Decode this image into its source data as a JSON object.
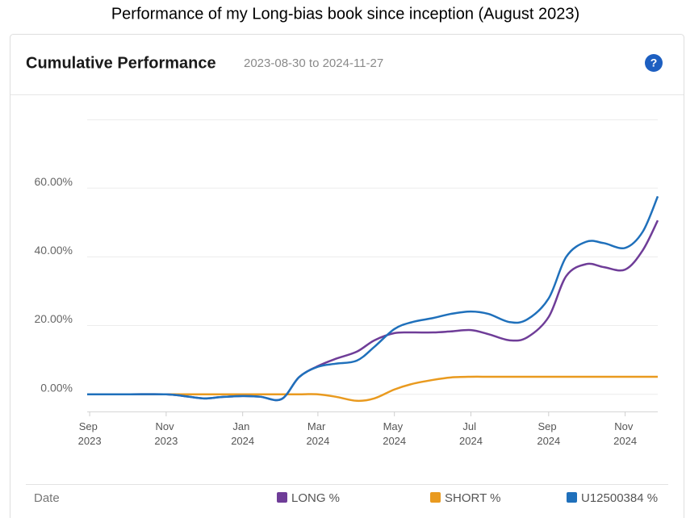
{
  "page_title": "Performance of my Long-bias book since inception (August 2023)",
  "chart_data": {
    "type": "line",
    "title": "Cumulative Performance",
    "subtitle": "2023-08-30 to 2024-11-27",
    "help_label": "?",
    "x_label": "Date",
    "x": [
      "2023-08-30",
      "2023-10-01",
      "2023-11-01",
      "2023-11-15",
      "2023-12-01",
      "2023-12-15",
      "2024-01-01",
      "2024-01-15",
      "2024-02-01",
      "2024-02-15",
      "2024-03-01",
      "2024-03-15",
      "2024-04-01",
      "2024-04-15",
      "2024-05-01",
      "2024-05-15",
      "2024-06-01",
      "2024-06-15",
      "2024-07-01",
      "2024-07-15",
      "2024-08-01",
      "2024-08-15",
      "2024-09-01",
      "2024-09-15",
      "2024-10-01",
      "2024-10-15",
      "2024-11-01",
      "2024-11-15",
      "2024-11-27"
    ],
    "series": [
      {
        "name": "LONG %",
        "color": "#6f3d98",
        "values": [
          0,
          0,
          0,
          -0.5,
          -1.2,
          -0.8,
          -0.5,
          -0.7,
          -1.4,
          5,
          8.2,
          10.3,
          12.4,
          15.7,
          17.8,
          18,
          18,
          18.3,
          18.7,
          17.5,
          15.7,
          16.6,
          22.5,
          34.4,
          37.9,
          37,
          36.3,
          41.9,
          50.6
        ]
      },
      {
        "name": "SHORT %",
        "color": "#e99a1f",
        "values": [
          0,
          0,
          0,
          0,
          0,
          0,
          0,
          0,
          0,
          0,
          0,
          -0.7,
          -1.9,
          -1.2,
          1.4,
          3,
          4.2,
          4.9,
          5.1,
          5.1,
          5.1,
          5.1,
          5.1,
          5.1,
          5.1,
          5.1,
          5.1,
          5.1,
          5.1
        ]
      },
      {
        "name": "U12500384 %",
        "color": "#1f70bb",
        "values": [
          0,
          0,
          0,
          -0.5,
          -1.2,
          -0.8,
          -0.5,
          -0.7,
          -1.4,
          5,
          8,
          8.9,
          9.8,
          13.8,
          19,
          21,
          22.2,
          23.4,
          24.1,
          23.4,
          21,
          21.8,
          27.9,
          40,
          44.4,
          44,
          42.6,
          47.3,
          57.6
        ]
      }
    ],
    "xlim": [
      "2023-08-30",
      "2024-11-27"
    ],
    "xticks": [
      {
        "value": "2023-09-01",
        "label": "Sep 2023"
      },
      {
        "value": "2023-11-01",
        "label": "Nov 2023"
      },
      {
        "value": "2024-01-01",
        "label": "Jan 2024"
      },
      {
        "value": "2024-03-01",
        "label": "Mar 2024"
      },
      {
        "value": "2024-05-01",
        "label": "May 2024"
      },
      {
        "value": "2024-07-01",
        "label": "Jul 2024"
      },
      {
        "value": "2024-09-01",
        "label": "Sep 2024"
      },
      {
        "value": "2024-11-01",
        "label": "Nov 2024"
      }
    ],
    "ylim": [
      -5,
      80
    ],
    "yticks": [
      {
        "value": 0,
        "label": "0.00%"
      },
      {
        "value": 20,
        "label": "20.00%"
      },
      {
        "value": 40,
        "label": "40.00%"
      },
      {
        "value": 60,
        "label": "60.00%"
      }
    ],
    "grid": true
  }
}
